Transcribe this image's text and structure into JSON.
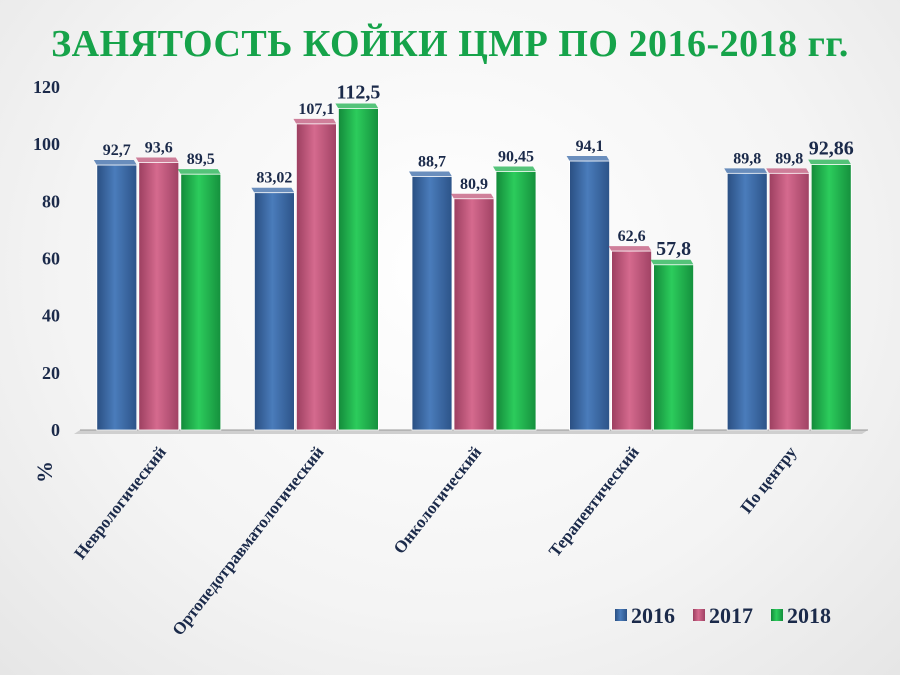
{
  "slide": {
    "title": "ЗАНЯТОСТЬ КОЙКИ ЦМР ПО 2016-2018 гг."
  },
  "chart_data": {
    "type": "bar",
    "title": "ЗАНЯТОСТЬ КОЙКИ ЦМР ПО 2016-2018 гг.",
    "ylabel": "%",
    "xlabel": "",
    "ylim": [
      0,
      120
    ],
    "yticks": [
      0,
      20,
      40,
      60,
      80,
      100,
      120
    ],
    "grid": false,
    "legend_position": "bottom-right",
    "categories": [
      "Неврологический",
      "Ортопедотравматологический",
      "Онкологический",
      "Терапевтический",
      "По центру"
    ],
    "series": [
      {
        "name": "2016",
        "color": "#3a6aa8",
        "values": [
          92.7,
          83.02,
          88.7,
          94.1,
          89.8
        ],
        "labels": [
          "92,7",
          "83,02",
          "88,7",
          "94,1",
          "89,8"
        ]
      },
      {
        "name": "2017",
        "color": "#c0567a",
        "values": [
          93.6,
          107.1,
          80.9,
          62.6,
          89.8
        ],
        "labels": [
          "93,6",
          "107,1",
          "80,9",
          "62,6",
          "89,8"
        ]
      },
      {
        "name": "2018",
        "color": "#1eb24f",
        "values": [
          89.5,
          112.5,
          90.45,
          57.8,
          92.86
        ],
        "labels": [
          "89,5",
          "112,5",
          "90,45",
          "57,8",
          "92,86"
        ]
      }
    ]
  }
}
